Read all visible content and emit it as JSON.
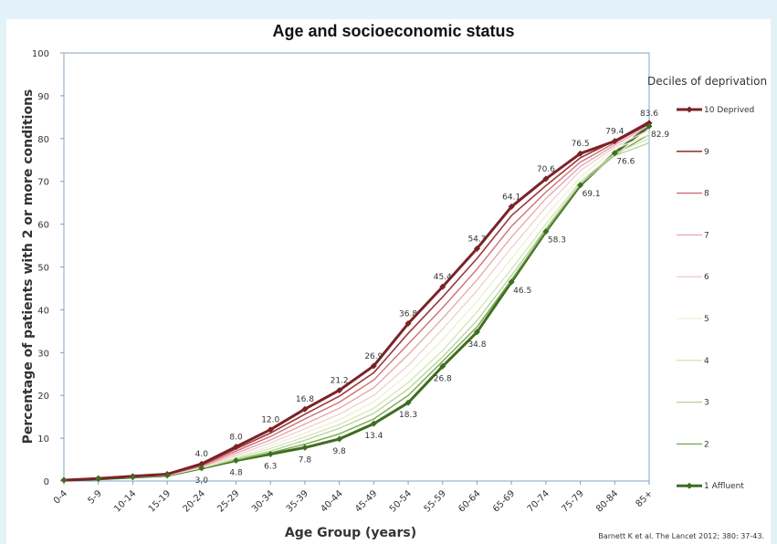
{
  "chart_data": {
    "type": "line",
    "title": "Age and socioeconomic status",
    "xlabel": "Age Group  (years)",
    "ylabel": "Percentage of patients with 2 or more conditions",
    "ylim": [
      0,
      100
    ],
    "yticks": [
      "0",
      "10",
      "20",
      "30",
      "40",
      "50",
      "60",
      "70",
      "80",
      "90",
      "100"
    ],
    "categories": [
      "0-4",
      "5-9",
      "10-14",
      "15-19",
      "20-24",
      "25-29",
      "30-34",
      "35-39",
      "40-44",
      "45-49",
      "50-54",
      "55-59",
      "60-64",
      "65-69",
      "70-74",
      "75-79",
      "80-84",
      "85+"
    ],
    "legend_title": "Deciles of deprivation",
    "legend_position": "right",
    "series": [
      {
        "name": "10 Deprived",
        "color": "#7b2226",
        "width": 3,
        "marker": true,
        "values": [
          0.2,
          0.6,
          1.1,
          1.6,
          4.0,
          8.0,
          12.0,
          16.8,
          21.2,
          26.9,
          36.8,
          45.4,
          54.3,
          64.1,
          70.6,
          76.5,
          79.4,
          83.6
        ]
      },
      {
        "name": "9",
        "color": "#9a3a3d",
        "width": 1.6,
        "marker": false,
        "values": [
          0.2,
          0.6,
          1.1,
          1.5,
          3.8,
          7.5,
          11.2,
          15.6,
          19.8,
          25.3,
          34.5,
          43.0,
          52.0,
          62.0,
          69.0,
          75.5,
          79.5,
          84.0
        ]
      },
      {
        "name": "8",
        "color": "#cf7076",
        "width": 1.4,
        "marker": false,
        "values": [
          0.2,
          0.6,
          1.0,
          1.5,
          3.6,
          7.0,
          10.4,
          14.5,
          18.4,
          23.6,
          32.0,
          40.5,
          49.5,
          59.5,
          67.5,
          74.5,
          79.0,
          83.5
        ]
      },
      {
        "name": "7",
        "color": "#e4a3a9",
        "width": 1.3,
        "marker": false,
        "values": [
          0.2,
          0.6,
          1.0,
          1.4,
          3.4,
          6.5,
          9.6,
          13.3,
          17.0,
          21.8,
          29.5,
          38.0,
          47.0,
          57.0,
          66.0,
          73.5,
          78.5,
          83.0
        ]
      },
      {
        "name": "6",
        "color": "#f0ced3",
        "width": 1.3,
        "marker": false,
        "values": [
          0.2,
          0.5,
          1.0,
          1.4,
          3.3,
          6.0,
          8.9,
          12.2,
          15.6,
          20.0,
          27.0,
          35.5,
          44.5,
          54.5,
          64.0,
          72.5,
          78.0,
          82.0
        ]
      },
      {
        "name": "5",
        "color": "#eef0d4",
        "width": 1.3,
        "marker": false,
        "values": [
          0.2,
          0.5,
          1.0,
          1.4,
          3.2,
          5.6,
          8.2,
          11.2,
          14.3,
          18.5,
          25.0,
          33.0,
          42.0,
          52.0,
          62.0,
          71.0,
          77.5,
          81.0
        ]
      },
      {
        "name": "4",
        "color": "#d5e4b7",
        "width": 1.3,
        "marker": false,
        "values": [
          0.2,
          0.5,
          1.0,
          1.3,
          3.1,
          5.3,
          7.6,
          10.3,
          13.2,
          17.0,
          23.0,
          30.5,
          39.5,
          49.5,
          60.0,
          70.0,
          76.5,
          80.0
        ]
      },
      {
        "name": "3",
        "color": "#b7d196",
        "width": 1.3,
        "marker": false,
        "values": [
          0.2,
          0.5,
          0.9,
          1.3,
          3.0,
          5.1,
          7.0,
          9.5,
          12.3,
          15.8,
          21.5,
          29.0,
          37.5,
          48.0,
          59.0,
          69.5,
          76.0,
          79.0
        ]
      },
      {
        "name": "2",
        "color": "#7ba84d",
        "width": 1.4,
        "marker": false,
        "values": [
          0.2,
          0.5,
          0.9,
          1.3,
          3.0,
          4.9,
          6.6,
          8.6,
          11.0,
          14.5,
          20.0,
          28.0,
          36.0,
          47.0,
          58.5,
          69.3,
          76.2,
          81.0
        ]
      },
      {
        "name": "1 Affluent",
        "color": "#3d6e22",
        "width": 3,
        "marker": true,
        "values": [
          0.2,
          0.5,
          0.9,
          1.3,
          3.0,
          4.8,
          6.3,
          7.8,
          9.8,
          13.4,
          18.3,
          26.8,
          34.8,
          46.5,
          58.3,
          69.1,
          76.6,
          82.9
        ]
      }
    ],
    "data_labels": [
      {
        "series": "10 Deprived",
        "category": "20-24",
        "text": "4.0",
        "pos": "above"
      },
      {
        "series": "10 Deprived",
        "category": "25-29",
        "text": "8.0",
        "pos": "above"
      },
      {
        "series": "10 Deprived",
        "category": "30-34",
        "text": "12.0",
        "pos": "above"
      },
      {
        "series": "10 Deprived",
        "category": "35-39",
        "text": "16.8",
        "pos": "above"
      },
      {
        "series": "10 Deprived",
        "category": "40-44",
        "text": "21.2",
        "pos": "above"
      },
      {
        "series": "10 Deprived",
        "category": "45-49",
        "text": "26.9",
        "pos": "above"
      },
      {
        "series": "10 Deprived",
        "category": "50-54",
        "text": "36.8",
        "pos": "above"
      },
      {
        "series": "10 Deprived",
        "category": "55-59",
        "text": "45.4",
        "pos": "above"
      },
      {
        "series": "10 Deprived",
        "category": "60-64",
        "text": "54.3",
        "pos": "above"
      },
      {
        "series": "10 Deprived",
        "category": "65-69",
        "text": "64.1",
        "pos": "above"
      },
      {
        "series": "10 Deprived",
        "category": "70-74",
        "text": "70.6",
        "pos": "above"
      },
      {
        "series": "10 Deprived",
        "category": "75-79",
        "text": "76.5",
        "pos": "above"
      },
      {
        "series": "10 Deprived",
        "category": "80-84",
        "text": "79.4",
        "pos": "above"
      },
      {
        "series": "10 Deprived",
        "category": "85+",
        "text": "83.6",
        "pos": "above"
      },
      {
        "series": "1 Affluent",
        "category": "20-24",
        "text": "3.0",
        "pos": "below"
      },
      {
        "series": "1 Affluent",
        "category": "25-29",
        "text": "4.8",
        "pos": "below"
      },
      {
        "series": "1 Affluent",
        "category": "30-34",
        "text": "6.3",
        "pos": "below"
      },
      {
        "series": "1 Affluent",
        "category": "35-39",
        "text": "7.8",
        "pos": "below"
      },
      {
        "series": "1 Affluent",
        "category": "40-44",
        "text": "9.8",
        "pos": "below"
      },
      {
        "series": "1 Affluent",
        "category": "45-49",
        "text": "13.4",
        "pos": "below"
      },
      {
        "series": "1 Affluent",
        "category": "50-54",
        "text": "18.3",
        "pos": "below"
      },
      {
        "series": "1 Affluent",
        "category": "55-59",
        "text": "26.8",
        "pos": "below"
      },
      {
        "series": "1 Affluent",
        "category": "60-64",
        "text": "34.8",
        "pos": "below"
      },
      {
        "series": "1 Affluent",
        "category": "65-69",
        "text": "46.5",
        "pos": "right"
      },
      {
        "series": "1 Affluent",
        "category": "70-74",
        "text": "58.3",
        "pos": "right"
      },
      {
        "series": "1 Affluent",
        "category": "75-79",
        "text": "69.1",
        "pos": "right"
      },
      {
        "series": "1 Affluent",
        "category": "80-84",
        "text": "76.6",
        "pos": "right"
      },
      {
        "series": "1 Affluent",
        "category": "85+",
        "text": "82.9",
        "pos": "right"
      }
    ],
    "grid": false,
    "credit": "Barnett K et al.  The Lancet  2012;  380: 37-43."
  }
}
